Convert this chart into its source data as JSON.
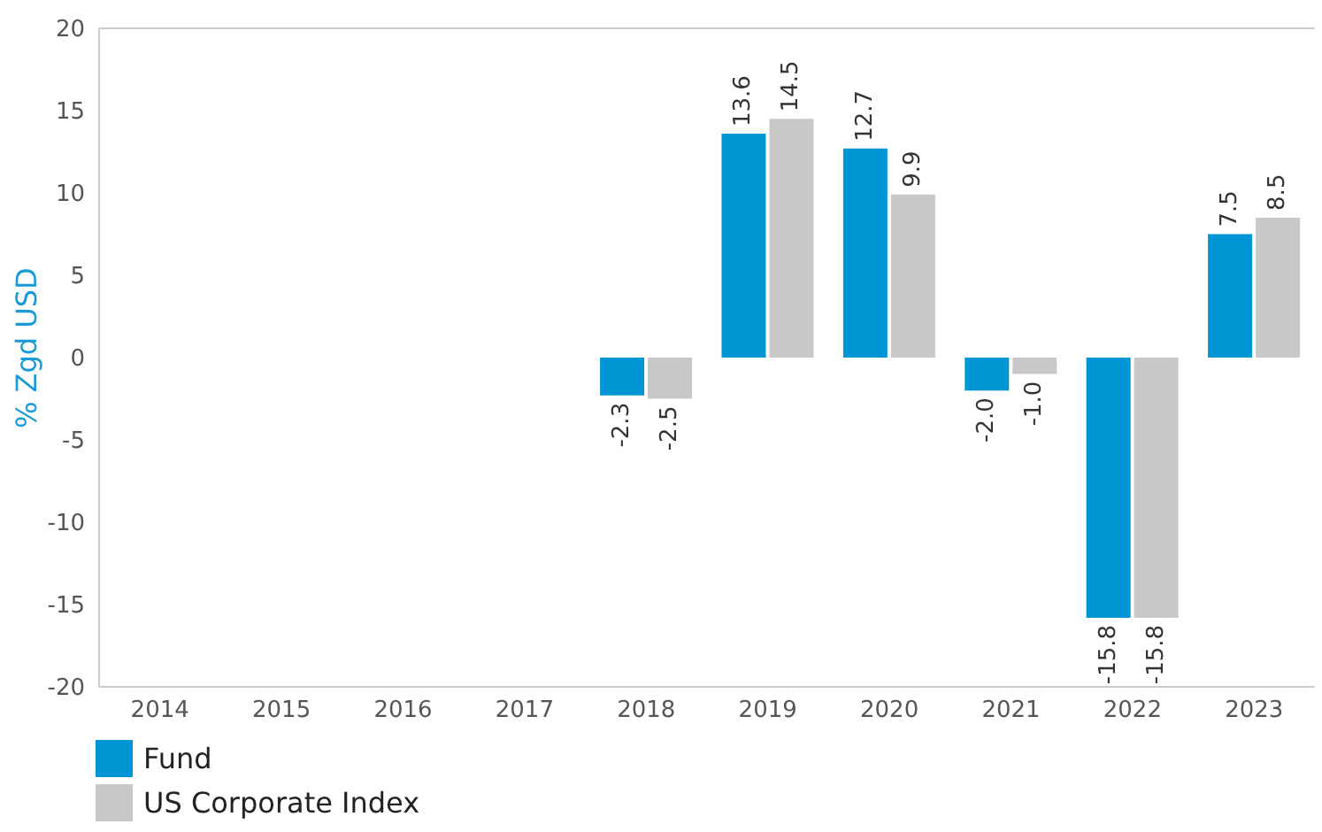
{
  "chart_data": {
    "type": "bar",
    "ylabel": "% Zgd USD",
    "categories": [
      "2014",
      "2015",
      "2016",
      "2017",
      "2018",
      "2019",
      "2020",
      "2021",
      "2022",
      "2023"
    ],
    "series": [
      {
        "name": "Fund",
        "color": "#0096d6",
        "values": [
          null,
          null,
          null,
          null,
          -2.3,
          13.6,
          12.7,
          -2.0,
          -15.8,
          7.5
        ],
        "value_labels": [
          null,
          null,
          null,
          null,
          "-2.3",
          "13.6",
          "12.7",
          "-2.0",
          "-15.8",
          "7.5"
        ]
      },
      {
        "name": "US Corporate Index",
        "color": "#c8c8c8",
        "values": [
          null,
          null,
          null,
          null,
          -2.5,
          14.5,
          9.9,
          -1.0,
          -15.8,
          8.5
        ],
        "value_labels": [
          null,
          null,
          null,
          null,
          "-2.5",
          "14.5",
          "9.9",
          "-1.0",
          "-15.8",
          "8.5"
        ]
      }
    ],
    "ylim": [
      -20,
      20
    ],
    "yticks": [
      -20,
      -15,
      -10,
      -5,
      0,
      5,
      10,
      15,
      20
    ],
    "legend": "bottom left"
  }
}
